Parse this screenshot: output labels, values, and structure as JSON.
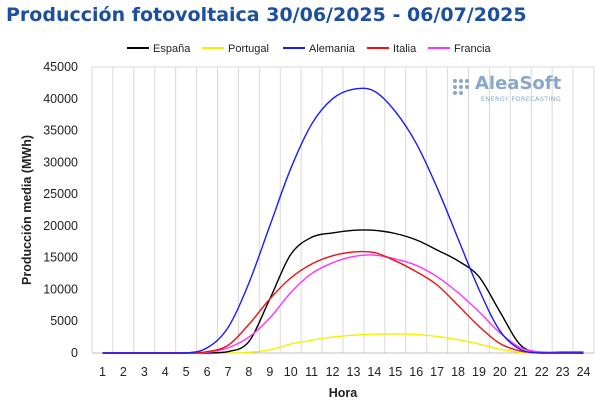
{
  "chart_data": {
    "type": "line",
    "title": "Producción fotovoltaica 30/06/2025 - 06/07/2025",
    "xlabel": "Hora",
    "ylabel": "Producción media (MWh)",
    "x": [
      1,
      2,
      3,
      4,
      5,
      6,
      7,
      8,
      9,
      10,
      11,
      12,
      13,
      14,
      15,
      16,
      17,
      18,
      19,
      20,
      21,
      22,
      23,
      24
    ],
    "xlim": [
      1,
      24
    ],
    "ylim": [
      0,
      45000
    ],
    "yticks": [
      0,
      5000,
      10000,
      15000,
      20000,
      25000,
      30000,
      35000,
      40000,
      45000
    ],
    "grid": "vertical",
    "legend_position": "top",
    "series": [
      {
        "name": "España",
        "color": "#000000",
        "values": [
          0,
          0,
          0,
          0,
          0,
          0,
          200,
          1800,
          8500,
          15500,
          18200,
          18900,
          19300,
          19300,
          18800,
          17800,
          16200,
          14500,
          12000,
          6500,
          1200,
          100,
          50,
          0
        ]
      },
      {
        "name": "Portugal",
        "color": "#f2f200",
        "values": [
          0,
          0,
          0,
          0,
          0,
          0,
          0,
          100,
          500,
          1400,
          2000,
          2500,
          2800,
          2950,
          3000,
          2900,
          2600,
          2100,
          1400,
          600,
          100,
          0,
          0,
          0
        ]
      },
      {
        "name": "Alemania",
        "color": "#1a1aff",
        "values": [
          0,
          0,
          0,
          0,
          0,
          800,
          4000,
          11000,
          20000,
          29000,
          36000,
          40000,
          41500,
          41200,
          38000,
          33000,
          26000,
          18000,
          10000,
          3500,
          500,
          0,
          0,
          0
        ]
      },
      {
        "name": "Italia",
        "color": "#ee1111",
        "values": [
          0,
          0,
          0,
          0,
          0,
          200,
          1200,
          4500,
          8500,
          11800,
          14000,
          15300,
          15900,
          15800,
          14500,
          12800,
          10700,
          7500,
          4200,
          1500,
          300,
          0,
          0,
          0
        ]
      },
      {
        "name": "Francia",
        "color": "#ff33ff",
        "values": [
          0,
          0,
          0,
          0,
          0,
          100,
          800,
          2500,
          5500,
          9500,
          12500,
          14200,
          15200,
          15400,
          14800,
          13800,
          12000,
          9500,
          6500,
          3200,
          800,
          150,
          200,
          200
        ]
      }
    ]
  },
  "logo": {
    "main": "AleaSoft",
    "sub": "ENERGY FORECASTING"
  }
}
